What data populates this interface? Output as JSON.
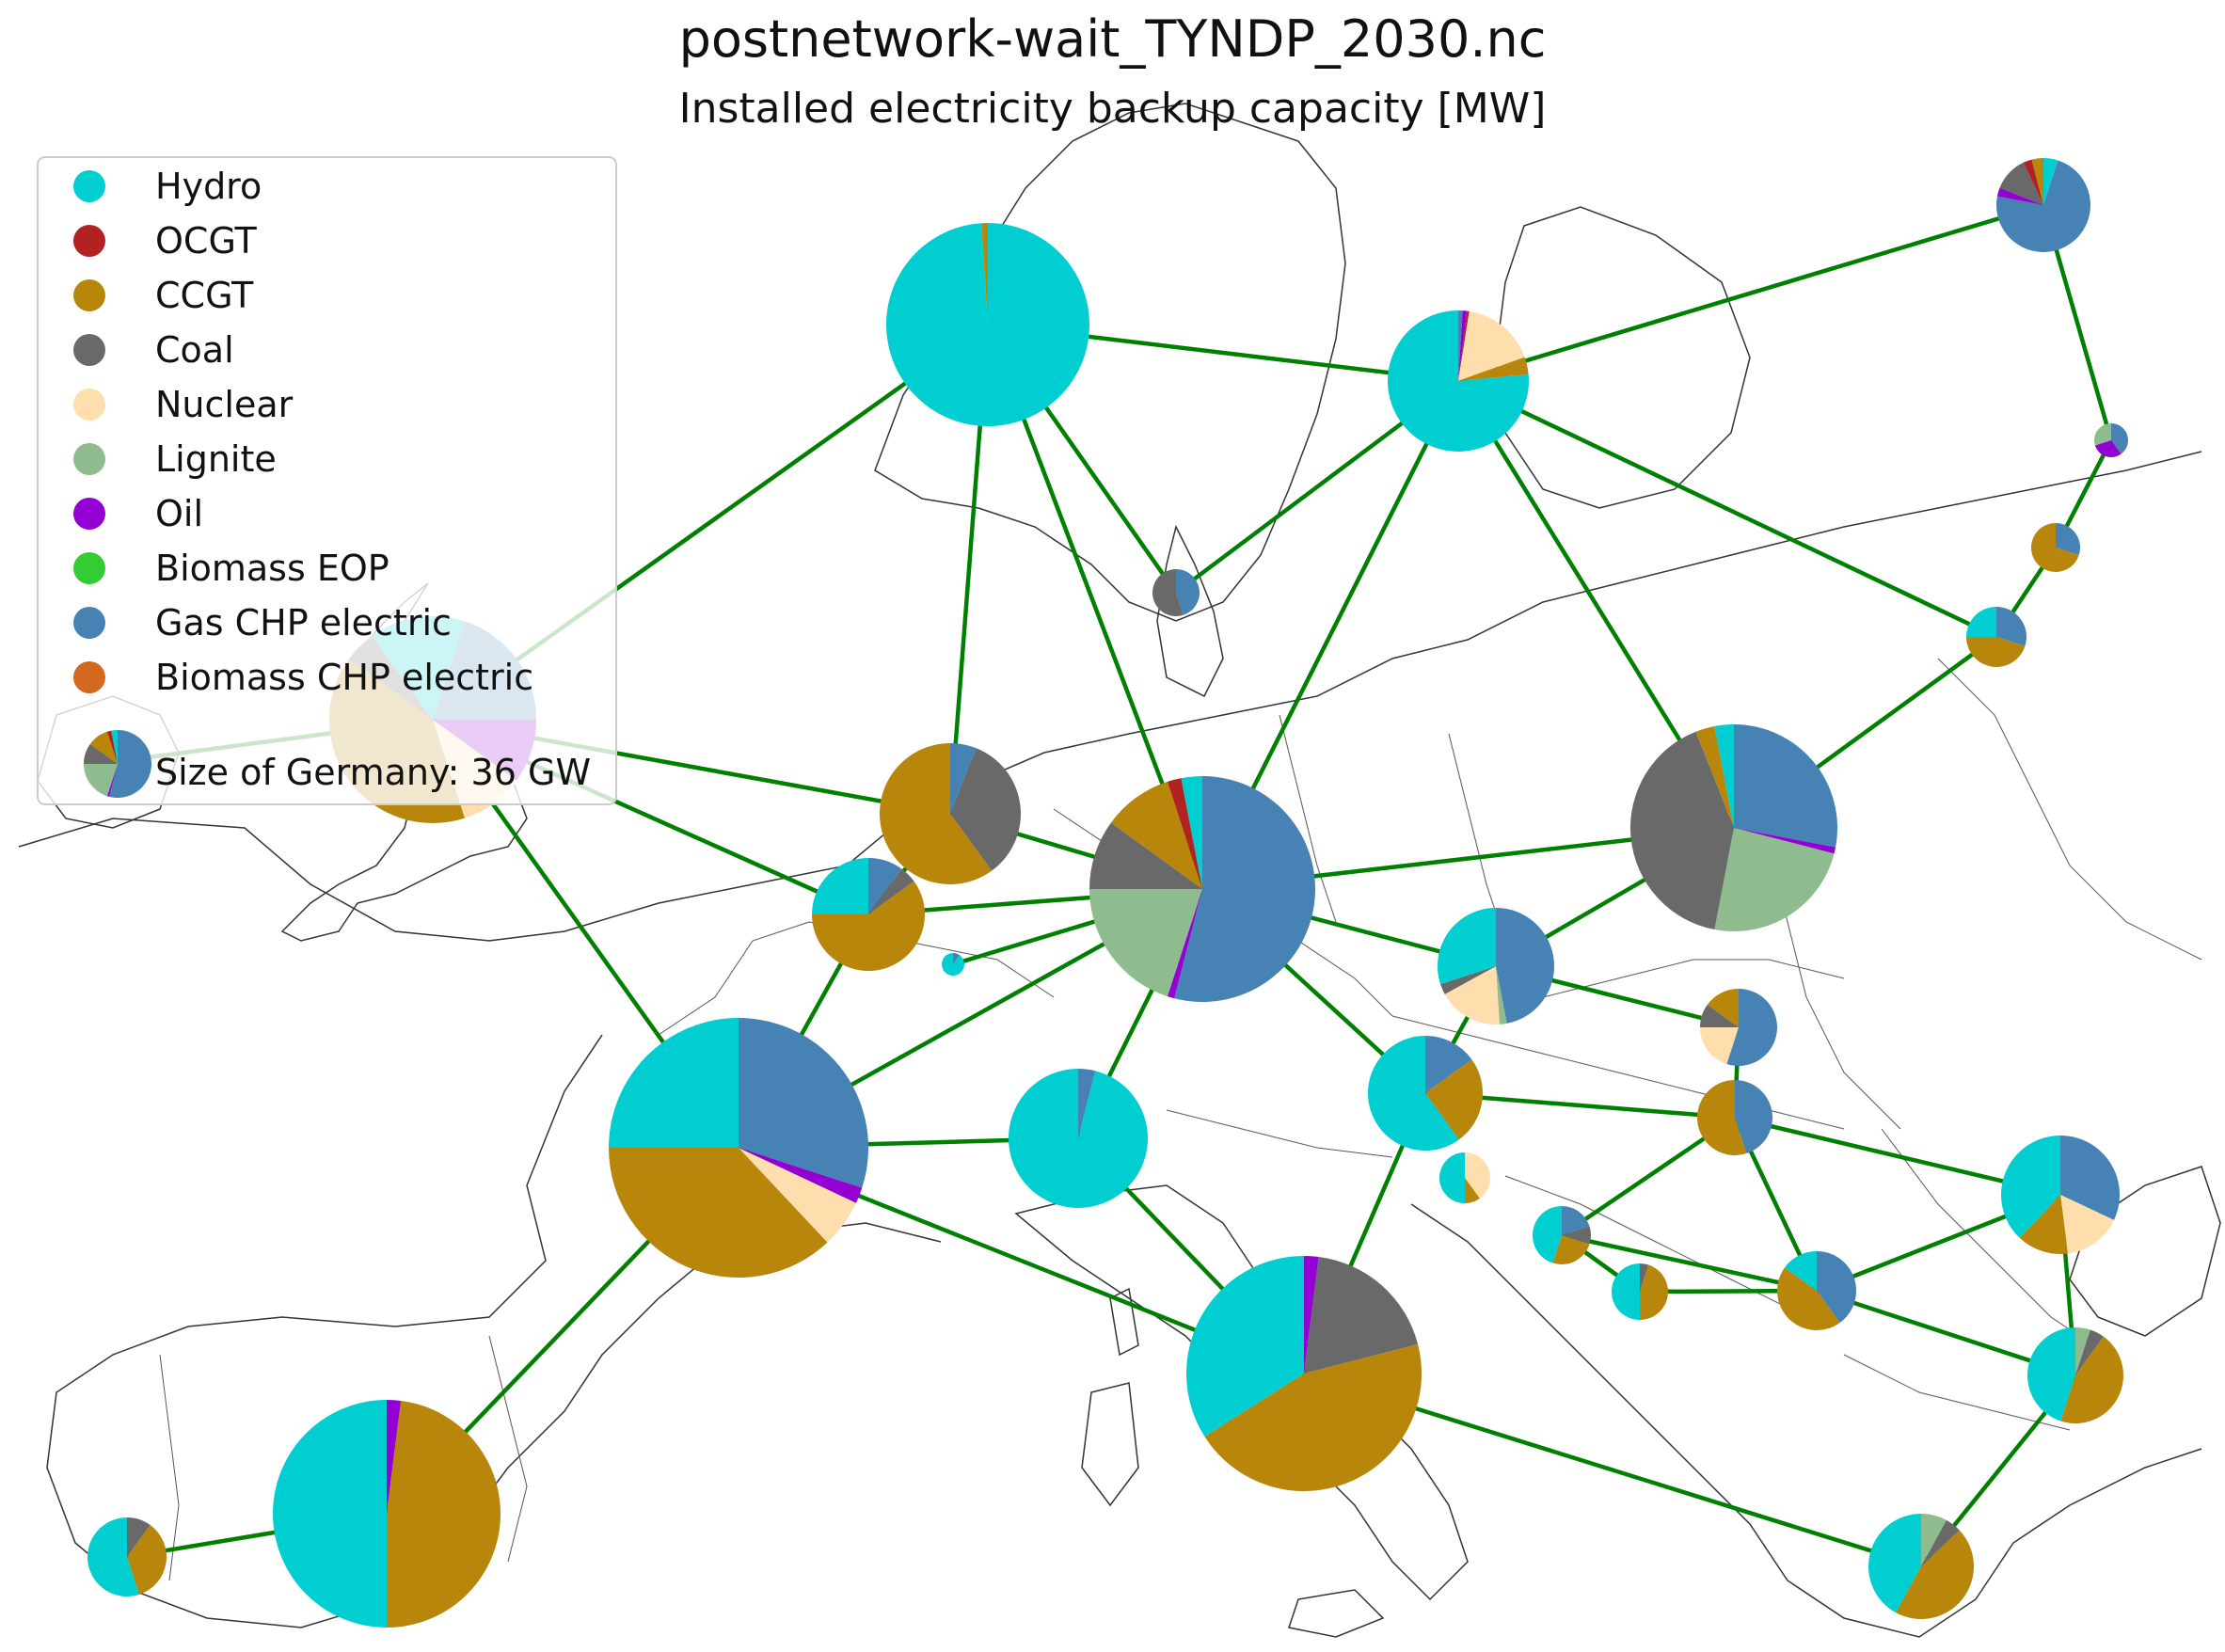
{
  "title": "postnetwork-wait_TYNDP_2030.nc",
  "subtitle": "Installed electricity backup capacity [MW]",
  "colors": {
    "Hydro": "#00ced1",
    "OCGT": "#b22222",
    "CCGT": "#b8860b",
    "Coal": "#696969",
    "Nuclear": "#ffdead",
    "Lignite": "#8fbc8f",
    "Oil": "#9400d3",
    "Biomass EOP": "#32cd32",
    "Gas CHP electric": "#4682b4",
    "Biomass CHP electric": "#d2691e",
    "line": "#008000"
  },
  "legend": {
    "items": [
      "Hydro",
      "OCGT",
      "CCGT",
      "Coal",
      "Nuclear",
      "Lignite",
      "Oil",
      "Biomass EOP",
      "Gas CHP electric",
      "Biomass CHP electric"
    ],
    "size_label": "Size of Germany: 36 GW"
  },
  "map_data": {
    "nodes": [
      {
        "id": "NO",
        "parts": [
          [
            "Hydro",
            0.99
          ],
          [
            "CCGT",
            0.01
          ]
        ]
      },
      {
        "id": "SE",
        "parts": [
          [
            "Gas CHP electric",
            0.01
          ],
          [
            "Oil",
            0.01
          ],
          [
            "OCGT",
            0.005
          ],
          [
            "Nuclear",
            0.17
          ],
          [
            "CCGT",
            0.04
          ],
          [
            "Hydro",
            0.765
          ]
        ]
      },
      {
        "id": "FI",
        "parts": [
          [
            "Hydro",
            0.05
          ],
          [
            "Gas CHP electric",
            0.73
          ],
          [
            "Oil",
            0.03
          ],
          [
            "Coal",
            0.12
          ],
          [
            "OCGT",
            0.03
          ],
          [
            "CCGT",
            0.04
          ]
        ]
      },
      {
        "id": "EE",
        "parts": [
          [
            "Gas CHP electric",
            0.4
          ],
          [
            "Oil",
            0.3
          ],
          [
            "Lignite",
            0.3
          ]
        ]
      },
      {
        "id": "LV",
        "parts": [
          [
            "Gas CHP electric",
            0.3
          ],
          [
            "CCGT",
            0.7
          ]
        ]
      },
      {
        "id": "LT",
        "parts": [
          [
            "Gas CHP electric",
            0.3
          ],
          [
            "CCGT",
            0.45
          ],
          [
            "Hydro",
            0.25
          ]
        ]
      },
      {
        "id": "DK",
        "parts": [
          [
            "Gas CHP electric",
            0.45
          ],
          [
            "Coal",
            0.55
          ]
        ]
      },
      {
        "id": "GB",
        "parts": [
          [
            "Hydro",
            0.05
          ],
          [
            "Gas CHP electric",
            0.2
          ],
          [
            "Oil",
            0.1
          ],
          [
            "Nuclear",
            0.1
          ],
          [
            "CCGT",
            0.4
          ],
          [
            "Coal",
            0.05
          ],
          [
            "Hydro",
            0.1
          ]
        ]
      },
      {
        "id": "IE",
        "parts": [
          [
            "Gas CHP electric",
            0.3
          ],
          [
            "Hydro",
            0.2
          ],
          [
            "Nuclear",
            0.35
          ],
          [
            "CCGT",
            0.15
          ]
        ]
      },
      {
        "id": "NL",
        "parts": [
          [
            "Gas CHP electric",
            0.06
          ],
          [
            "Coal",
            0.34
          ],
          [
            "CCGT",
            0.6
          ]
        ]
      },
      {
        "id": "BE",
        "parts": [
          [
            "Gas CHP electric",
            0.1
          ],
          [
            "Coal",
            0.05
          ],
          [
            "CCGT",
            0.6
          ],
          [
            "Hydro",
            0.25
          ]
        ]
      },
      {
        "id": "LU",
        "parts": [
          [
            "Gas CHP electric",
            0.1
          ],
          [
            "Hydro",
            0.9
          ]
        ]
      },
      {
        "id": "DE",
        "parts": [
          [
            "Gas CHP electric",
            0.54
          ],
          [
            "Oil",
            0.01
          ],
          [
            "Lignite",
            0.2
          ],
          [
            "Coal",
            0.1
          ],
          [
            "CCGT",
            0.1
          ],
          [
            "OCGT",
            0.02
          ],
          [
            "Hydro",
            0.03
          ]
        ]
      },
      {
        "id": "PL",
        "parts": [
          [
            "Gas CHP electric",
            0.28
          ],
          [
            "Oil",
            0.01
          ],
          [
            "Lignite",
            0.24
          ],
          [
            "Coal",
            0.41
          ],
          [
            "CCGT",
            0.03
          ],
          [
            "Hydro",
            0.03
          ]
        ]
      },
      {
        "id": "CZ",
        "parts": [
          [
            "Gas CHP electric",
            0.47
          ],
          [
            "Lignite",
            0.02
          ],
          [
            "Nuclear",
            0.18
          ],
          [
            "Coal",
            0.03
          ],
          [
            "Hydro",
            0.3
          ]
        ]
      },
      {
        "id": "SK",
        "parts": [
          [
            "Gas CHP electric",
            0.55
          ],
          [
            "Nuclear",
            0.2
          ],
          [
            "Coal",
            0.1
          ],
          [
            "CCGT",
            0.15
          ]
        ]
      },
      {
        "id": "AT",
        "parts": [
          [
            "Gas CHP electric",
            0.15
          ],
          [
            "CCGT",
            0.25
          ],
          [
            "Hydro",
            0.6
          ]
        ]
      },
      {
        "id": "HU",
        "parts": [
          [
            "Gas CHP electric",
            0.45
          ],
          [
            "CCGT",
            0.55
          ]
        ]
      },
      {
        "id": "FR",
        "parts": [
          [
            "Gas CHP electric",
            0.3
          ],
          [
            "Oil",
            0.02
          ],
          [
            "Nuclear",
            0.06
          ],
          [
            "CCGT",
            0.37
          ],
          [
            "Hydro",
            0.25
          ]
        ]
      },
      {
        "id": "CH",
        "parts": [
          [
            "Gas CHP electric",
            0.04
          ],
          [
            "Hydro",
            0.96
          ]
        ]
      },
      {
        "id": "SI",
        "parts": [
          [
            "Nuclear",
            0.4
          ],
          [
            "CCGT",
            0.1
          ],
          [
            "Hydro",
            0.5
          ]
        ]
      },
      {
        "id": "HR",
        "parts": [
          [
            "Gas CHP electric",
            0.2
          ],
          [
            "Coal",
            0.1
          ],
          [
            "CCGT",
            0.25
          ],
          [
            "Hydro",
            0.45
          ]
        ]
      },
      {
        "id": "BA",
        "parts": [
          [
            "Coal",
            0.05
          ],
          [
            "CCGT",
            0.45
          ],
          [
            "Hydro",
            0.5
          ]
        ]
      },
      {
        "id": "RS",
        "parts": [
          [
            "Gas CHP electric",
            0.4
          ],
          [
            "CCGT",
            0.45
          ],
          [
            "Hydro",
            0.15
          ]
        ]
      },
      {
        "id": "RO",
        "parts": [
          [
            "Gas CHP electric",
            0.32
          ],
          [
            "Nuclear",
            0.16
          ],
          [
            "CCGT",
            0.14
          ],
          [
            "Hydro",
            0.38
          ]
        ]
      },
      {
        "id": "BG",
        "parts": [
          [
            "Lignite",
            0.05
          ],
          [
            "Coal",
            0.05
          ],
          [
            "CCGT",
            0.45
          ],
          [
            "Hydro",
            0.45
          ]
        ]
      },
      {
        "id": "IT",
        "parts": [
          [
            "Oil",
            0.02
          ],
          [
            "Coal",
            0.19
          ],
          [
            "CCGT",
            0.45
          ],
          [
            "Hydro",
            0.34
          ]
        ]
      },
      {
        "id": "GR",
        "parts": [
          [
            "Lignite",
            0.08
          ],
          [
            "Coal",
            0.05
          ],
          [
            "CCGT",
            0.45
          ],
          [
            "Hydro",
            0.42
          ]
        ]
      },
      {
        "id": "ES",
        "parts": [
          [
            "Oil",
            0.02
          ],
          [
            "CCGT",
            0.48
          ],
          [
            "Hydro",
            0.5
          ]
        ]
      },
      {
        "id": "PT",
        "parts": [
          [
            "Coal",
            0.1
          ],
          [
            "CCGT",
            0.35
          ],
          [
            "Hydro",
            0.55
          ]
        ]
      }
    ],
    "links": [
      [
        "NO",
        "SE"
      ],
      [
        "NO",
        "GB"
      ],
      [
        "NO",
        "NL"
      ],
      [
        "NO",
        "DE"
      ],
      [
        "NO",
        "DK"
      ],
      [
        "SE",
        "FI"
      ],
      [
        "SE",
        "DK"
      ],
      [
        "SE",
        "DE"
      ],
      [
        "SE",
        "PL"
      ],
      [
        "SE",
        "LT"
      ],
      [
        "FI",
        "EE"
      ],
      [
        "EE",
        "LV"
      ],
      [
        "LV",
        "LT"
      ],
      [
        "LT",
        "PL"
      ],
      [
        "GB",
        "IE"
      ],
      [
        "GB",
        "NL"
      ],
      [
        "GB",
        "BE"
      ],
      [
        "GB",
        "FR"
      ],
      [
        "NL",
        "DE"
      ],
      [
        "NL",
        "BE"
      ],
      [
        "BE",
        "DE"
      ],
      [
        "BE",
        "FR"
      ],
      [
        "LU",
        "DE"
      ],
      [
        "DE",
        "FR"
      ],
      [
        "DE",
        "CH"
      ],
      [
        "DE",
        "AT"
      ],
      [
        "DE",
        "CZ"
      ],
      [
        "DE",
        "PL"
      ],
      [
        "PL",
        "CZ"
      ],
      [
        "CZ",
        "SK"
      ],
      [
        "CZ",
        "AT"
      ],
      [
        "SK",
        "HU"
      ],
      [
        "AT",
        "HU"
      ],
      [
        "AT",
        "IT"
      ],
      [
        "FR",
        "CH"
      ],
      [
        "FR",
        "IT"
      ],
      [
        "FR",
        "ES"
      ],
      [
        "ES",
        "PT"
      ],
      [
        "CH",
        "IT"
      ],
      [
        "HU",
        "HR"
      ],
      [
        "HU",
        "RS"
      ],
      [
        "HU",
        "RO"
      ],
      [
        "HR",
        "BA"
      ],
      [
        "HR",
        "RS"
      ],
      [
        "BA",
        "RS"
      ],
      [
        "RS",
        "RO"
      ],
      [
        "RS",
        "BG"
      ],
      [
        "RO",
        "BG"
      ],
      [
        "BG",
        "GR"
      ],
      [
        "IT",
        "GR"
      ]
    ]
  }
}
